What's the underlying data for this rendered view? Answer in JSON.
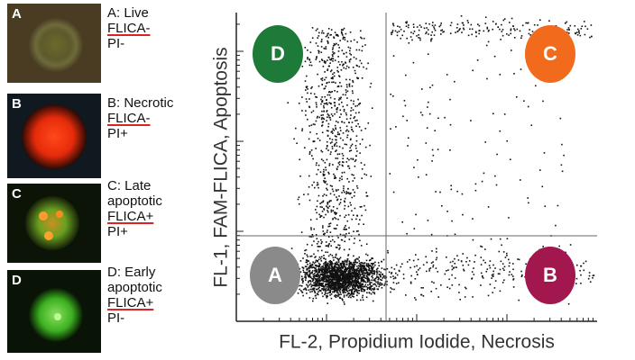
{
  "panels": [
    {
      "letter": "A",
      "lines": [
        "A: Live",
        "FLICA-",
        "PI-"
      ]
    },
    {
      "letter": "B",
      "lines": [
        "B: Necrotic",
        "FLICA-",
        "PI+"
      ]
    },
    {
      "letter": "C",
      "lines": [
        "C: Late",
        "apoptotic",
        "FLICA+",
        "PI+"
      ]
    },
    {
      "letter": "D",
      "lines": [
        "D: Early",
        "apoptotic",
        "FLICA+",
        "PI-"
      ]
    }
  ],
  "quadrants": [
    "D",
    "C",
    "A",
    "B"
  ],
  "axes": {
    "y_title": "FL-1, FAM-FLICA, Apoptosis",
    "x_title": "FL-2, Propidium Iodide, Necrosis"
  }
}
